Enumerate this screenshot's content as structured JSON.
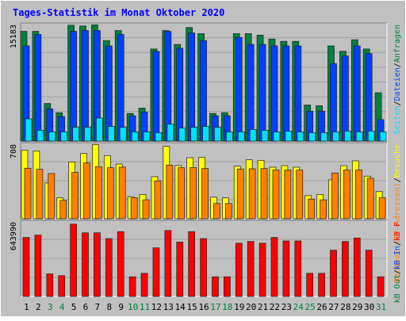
{
  "title": "Tages-Statistik im Monat Oktober 2020",
  "colors": {
    "background": "#c0c0c0",
    "border": "#ffffff",
    "title_text": "#0000ff",
    "plot_bg": "#c0c0c0",
    "gridline": "#a0a0a0",
    "label_normal": "#000000",
    "label_weekend": "#008040",
    "hits": "#008040",
    "files": "#0040ff",
    "pages": "#00e0ff",
    "visits": "#ffff00",
    "sites": "#ff8000",
    "kbytes": "#ff0000"
  },
  "chart_data": [
    {
      "type": "bar",
      "id": "requests",
      "ymax_label": "15183",
      "ylim": [
        0,
        15183
      ],
      "grid": true,
      "legend_position": "right-vertical",
      "legend": [
        {
          "text": "Anfragen",
          "color_key": "hits"
        },
        {
          "text": "Dateien",
          "color_key": "files"
        },
        {
          "text": "Seiten",
          "color_key": "pages"
        }
      ],
      "legend_separator": "/",
      "series": [
        {
          "key": "hits",
          "values": [
            14300,
            14300,
            4900,
            3700,
            15100,
            15000,
            15150,
            13100,
            14400,
            3600,
            4300,
            12000,
            14400,
            12600,
            14800,
            14000,
            3600,
            3700,
            14000,
            14000,
            13800,
            13300,
            13000,
            13000,
            4700,
            4600,
            12400,
            11700,
            13200,
            12000,
            6300
          ]
        },
        {
          "key": "files",
          "values": [
            12400,
            13900,
            4200,
            3200,
            14300,
            14400,
            14400,
            12400,
            13900,
            3300,
            3800,
            11700,
            14300,
            12100,
            14100,
            13100,
            3300,
            3300,
            13500,
            12600,
            12600,
            12400,
            12400,
            12400,
            3900,
            3900,
            10100,
            11100,
            12400,
            11400,
            2800
          ]
        },
        {
          "key": "pages",
          "values": [
            2900,
            1400,
            1200,
            1200,
            1800,
            1800,
            3000,
            1900,
            1800,
            1200,
            1200,
            1100,
            2200,
            1700,
            1800,
            1900,
            1800,
            1200,
            1200,
            1500,
            1400,
            1200,
            1300,
            1200,
            1100,
            1100,
            1200,
            1300,
            1200,
            1300,
            1200
          ]
        }
      ]
    },
    {
      "type": "bar",
      "id": "visitors",
      "ymax_label": "708",
      "ylim": [
        0,
        708
      ],
      "grid": true,
      "legend_position": "right-vertical",
      "legend": [
        {
          "text": "Besuche",
          "color_key": "visits"
        },
        {
          "text": "Rechner (IP-Adressen)",
          "color_key": "sites"
        }
      ],
      "legend_separator": "/",
      "series": [
        {
          "key": "visits",
          "values": [
            650,
            645,
            340,
            200,
            540,
            620,
            705,
            600,
            520,
            210,
            230,
            400,
            688,
            505,
            580,
            585,
            205,
            200,
            500,
            560,
            555,
            490,
            505,
            490,
            220,
            230,
            370,
            505,
            550,
            405,
            260
          ]
        },
        {
          "key": "sites",
          "values": [
            480,
            470,
            430,
            175,
            440,
            530,
            495,
            485,
            490,
            200,
            180,
            360,
            510,
            485,
            487,
            477,
            145,
            145,
            473,
            475,
            477,
            464,
            463,
            462,
            187,
            180,
            435,
            464,
            464,
            385,
            200
          ]
        }
      ]
    },
    {
      "type": "bar",
      "id": "kbytes",
      "ymax_label": "643990",
      "ylim": [
        0,
        643990
      ],
      "grid": true,
      "legend_position": "right-vertical",
      "legend": [
        {
          "text": "kB F",
          "color_key": "kbytes"
        },
        {
          "text": "kB In",
          "color_key": "files"
        },
        {
          "text": "kB Out",
          "color_key": "hits"
        }
      ],
      "legend_separator": "/",
      "categories": [
        "1",
        "2",
        "3",
        "4",
        "5",
        "6",
        "7",
        "8",
        "9",
        "10",
        "11",
        "12",
        "13",
        "14",
        "15",
        "16",
        "17",
        "18",
        "19",
        "20",
        "21",
        "22",
        "23",
        "24",
        "25",
        "26",
        "27",
        "28",
        "29",
        "30",
        "31"
      ],
      "weekend_days": [
        3,
        4,
        10,
        11,
        17,
        18,
        24,
        25,
        31
      ],
      "series": [
        {
          "key": "kbytes",
          "values": [
            510000,
            530000,
            195000,
            180000,
            625000,
            550000,
            550000,
            500000,
            560000,
            170000,
            200000,
            420000,
            570000,
            470000,
            560000,
            500000,
            170000,
            170000,
            460000,
            475000,
            460000,
            510000,
            480000,
            480000,
            200000,
            200000,
            400000,
            475000,
            505000,
            400000,
            170000
          ]
        }
      ]
    }
  ]
}
